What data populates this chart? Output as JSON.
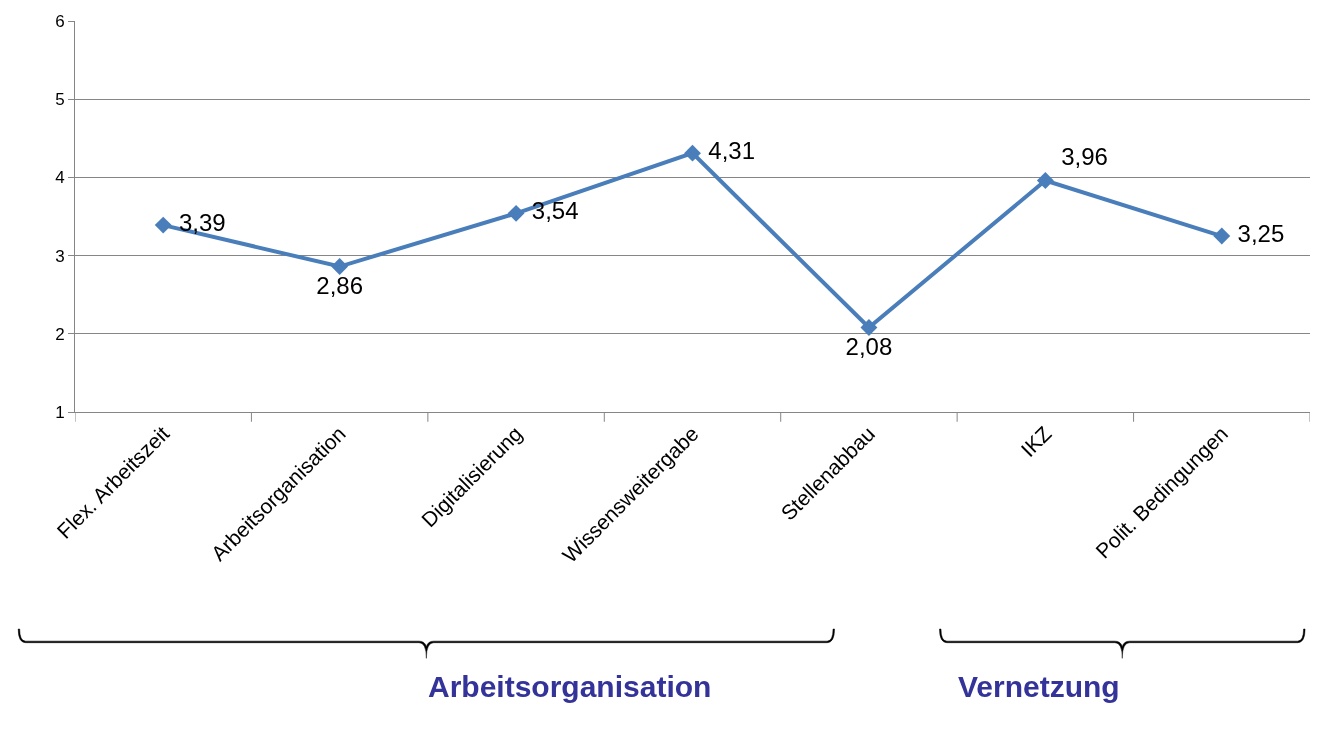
{
  "chart_data": {
    "type": "line",
    "categories": [
      "Flex. Arbeitszeit",
      "Arbeitsorganisation",
      "Digitalisierung",
      "Wissensweitergabe",
      "Stellenabbau",
      "IKZ",
      "Polit. Bedingungen"
    ],
    "series": [
      {
        "color": "#4a7ebb",
        "values": [
          3.39,
          2.86,
          3.54,
          4.31,
          2.08,
          3.96,
          3.25
        ],
        "value_labels": [
          "3,39",
          "2,86",
          "3,54",
          "4,31",
          "2,08",
          "3,96",
          "3,25"
        ]
      }
    ],
    "ylim": [
      1,
      6
    ],
    "yticks": [
      1,
      2,
      3,
      4,
      5,
      6
    ],
    "grid": "y",
    "marker": "diamond",
    "line_style": "solid",
    "legend": false,
    "annotations": [
      "Arbeitsorganisation",
      "Vernetzung"
    ]
  }
}
